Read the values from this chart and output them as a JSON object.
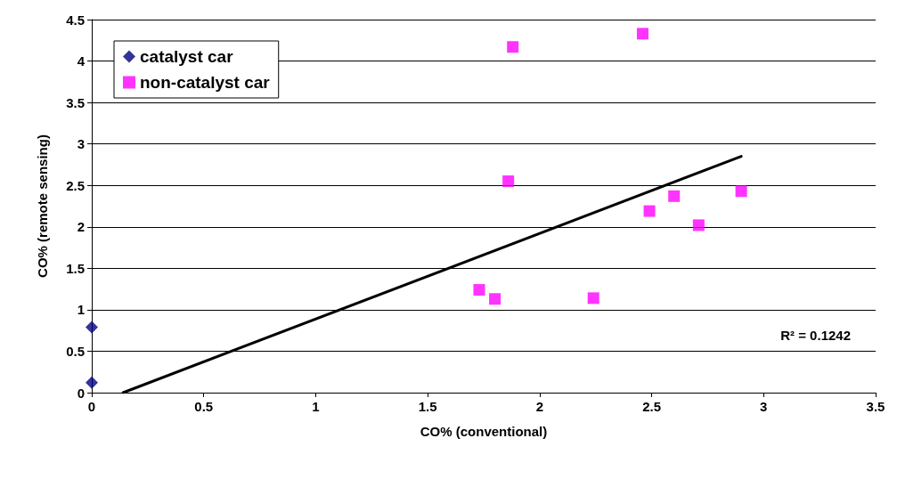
{
  "chart_data": {
    "type": "scatter",
    "xlabel": "CO% (conventional)",
    "ylabel": "CO% (remote sensing)",
    "xlim": [
      0,
      3.5
    ],
    "xticks": [
      0,
      0.5,
      1,
      1.5,
      2,
      2.5,
      3,
      3.5
    ],
    "ylim": [
      0,
      4.5
    ],
    "yticks": [
      0,
      0.5,
      1,
      1.5,
      2,
      2.5,
      3,
      3.5,
      4,
      4.5
    ],
    "grid": "y",
    "legend": "top left",
    "annotations": [
      "R² = 0.1242"
    ],
    "series": [
      {
        "name": "catalyst car",
        "color": "#000080",
        "marker": "diamond",
        "x": [
          0,
          0
        ],
        "values": [
          0.79,
          0.12
        ]
      },
      {
        "name": "non-catalyst car",
        "color": "#ff00ff",
        "marker": "square",
        "x": [
          1.88,
          2.46,
          1.86,
          2.49,
          2.6,
          2.71,
          2.9,
          1.73,
          1.8,
          2.24
        ],
        "values": [
          4.17,
          4.33,
          2.55,
          2.19,
          2.37,
          2.02,
          2.43,
          1.24,
          1.13,
          1.14
        ]
      },
      {
        "type": "line",
        "color": "#000000",
        "marker": "none",
        "x": [
          0.14,
          2.9
        ],
        "values": [
          0,
          2.85
        ]
      }
    ]
  }
}
